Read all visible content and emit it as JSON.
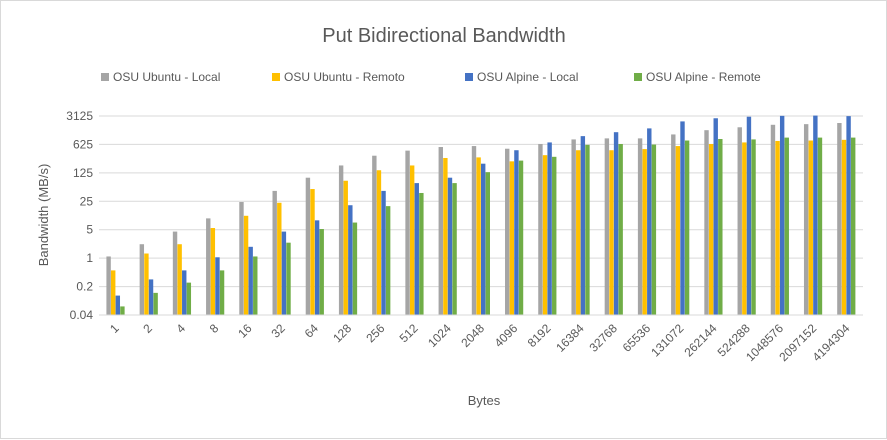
{
  "chart_data": {
    "type": "bar",
    "title": "Put Bidirectional Bandwidth",
    "xlabel": "Bytes",
    "ylabel": "Bandwidth (MB/s)",
    "y_scale": "log",
    "log_base": 5,
    "ylim": [
      0.04,
      3125
    ],
    "yticks": [
      "0.04",
      "0.2",
      "1",
      "5",
      "25",
      "125",
      "625",
      "3125"
    ],
    "grid": "horizontal",
    "legend_position": "top",
    "categories": [
      "1",
      "2",
      "4",
      "8",
      "16",
      "32",
      "64",
      "128",
      "256",
      "512",
      "1024",
      "2048",
      "4096",
      "8192",
      "16384",
      "32768",
      "65536",
      "131072",
      "262144",
      "524288",
      "1048576",
      "2097152",
      "4194304"
    ],
    "series": [
      {
        "name": "OSU Ubuntu - Local",
        "color": "#a5a5a5",
        "values": [
          1.1,
          2.2,
          4.5,
          9.5,
          24,
          45,
          95,
          190,
          330,
          440,
          540,
          570,
          490,
          640,
          830,
          880,
          880,
          1100,
          1400,
          1650,
          1900,
          1970,
          2100
        ]
      },
      {
        "name": "OSU Ubuntu - Remoto",
        "color": "#ffc000",
        "values": [
          0.5,
          1.3,
          2.2,
          5.5,
          11,
          23,
          50,
          80,
          145,
          190,
          290,
          300,
          240,
          340,
          450,
          450,
          480,
          570,
          640,
          700,
          760,
          780,
          810
        ]
      },
      {
        "name": "OSU Alpine - Local",
        "color": "#4472c4",
        "values": [
          0.12,
          0.3,
          0.5,
          1.05,
          1.9,
          4.5,
          8.5,
          20,
          45,
          70,
          95,
          210,
          450,
          700,
          1000,
          1250,
          1550,
          2300,
          2750,
          3000,
          3150,
          3200,
          3100
        ]
      },
      {
        "name": "OSU Alpine - Remote",
        "color": "#70ad47",
        "values": [
          0.065,
          0.14,
          0.25,
          0.5,
          1.1,
          2.4,
          5.2,
          7.5,
          19,
          40,
          70,
          130,
          250,
          310,
          610,
          640,
          620,
          780,
          850,
          830,
          920,
          920,
          920
        ]
      }
    ]
  }
}
